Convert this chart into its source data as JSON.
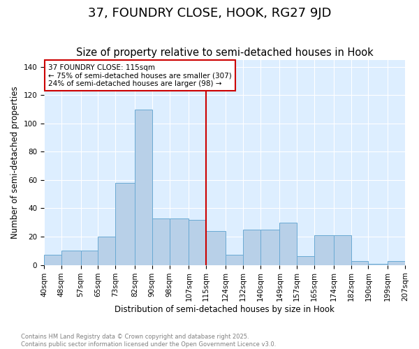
{
  "title": "37, FOUNDRY CLOSE, HOOK, RG27 9JD",
  "subtitle": "Size of property relative to semi-detached houses in Hook",
  "xlabel": "Distribution of semi-detached houses by size in Hook",
  "ylabel": "Number of semi-detached properties",
  "bins": [
    40,
    48,
    57,
    65,
    73,
    82,
    90,
    98,
    107,
    115,
    124,
    132,
    140,
    149,
    157,
    165,
    174,
    182,
    190,
    199,
    207
  ],
  "bin_labels": [
    "40sqm",
    "48sqm",
    "57sqm",
    "65sqm",
    "73sqm",
    "82sqm",
    "90sqm",
    "98sqm",
    "107sqm",
    "115sqm",
    "124sqm",
    "132sqm",
    "140sqm",
    "149sqm",
    "157sqm",
    "165sqm",
    "174sqm",
    "182sqm",
    "190sqm",
    "199sqm",
    "207sqm"
  ],
  "bar_heights": [
    7,
    10,
    10,
    20,
    58,
    110,
    33,
    33,
    32,
    24,
    7,
    25,
    25,
    30,
    6,
    21,
    21,
    3,
    1,
    3
  ],
  "bar_color": "#b8d0e8",
  "bar_edge_color": "#6aaad4",
  "property_value": 115,
  "pct_smaller": 75,
  "pct_larger": 24,
  "count_smaller": 307,
  "count_larger": 98,
  "vline_color": "#cc0000",
  "ylim": [
    0,
    145
  ],
  "yticks": [
    0,
    20,
    40,
    60,
    80,
    100,
    120,
    140
  ],
  "background_color": "#ddeeff",
  "footer": "Contains HM Land Registry data © Crown copyright and database right 2025.\nContains public sector information licensed under the Open Government Licence v3.0.",
  "title_fontsize": 13,
  "subtitle_fontsize": 10.5,
  "axis_label_fontsize": 8.5,
  "tick_fontsize": 7.5,
  "annotation_fontsize": 7.5
}
